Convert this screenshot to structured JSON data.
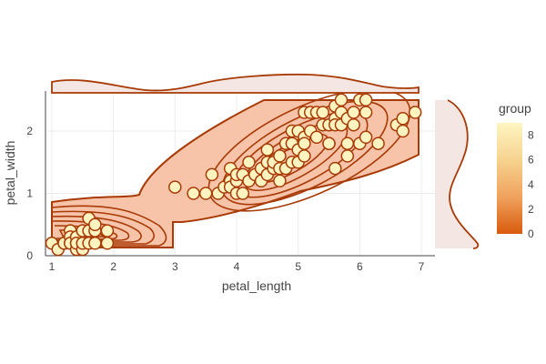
{
  "chart_data": {
    "type": "scatter",
    "subtype": "density-contour with marginal density",
    "title": "",
    "xlabel": "petal_length",
    "ylabel": "petal_width",
    "xlim": [
      0.8,
      7.2
    ],
    "ylim": [
      0,
      2.55
    ],
    "xticks": [
      1,
      2,
      3,
      4,
      5,
      6,
      7
    ],
    "yticks": [
      0,
      1,
      2
    ],
    "grid": true,
    "points": [
      [
        1.0,
        0.2
      ],
      [
        1.1,
        0.1
      ],
      [
        1.2,
        0.2
      ],
      [
        1.2,
        0.2
      ],
      [
        1.3,
        0.2
      ],
      [
        1.3,
        0.4
      ],
      [
        1.3,
        0.3
      ],
      [
        1.3,
        0.2
      ],
      [
        1.4,
        0.2
      ],
      [
        1.4,
        0.1
      ],
      [
        1.4,
        0.3
      ],
      [
        1.4,
        0.2
      ],
      [
        1.5,
        0.2
      ],
      [
        1.5,
        0.4
      ],
      [
        1.5,
        0.1
      ],
      [
        1.5,
        0.2
      ],
      [
        1.6,
        0.2
      ],
      [
        1.6,
        0.6
      ],
      [
        1.6,
        0.4
      ],
      [
        1.7,
        0.4
      ],
      [
        1.7,
        0.5
      ],
      [
        1.7,
        0.2
      ],
      [
        1.9,
        0.2
      ],
      [
        1.9,
        0.4
      ],
      [
        3.0,
        1.1
      ],
      [
        3.3,
        1.0
      ],
      [
        3.5,
        1.0
      ],
      [
        3.6,
        1.3
      ],
      [
        3.7,
        1.0
      ],
      [
        3.8,
        1.1
      ],
      [
        3.9,
        1.4
      ],
      [
        3.9,
        1.2
      ],
      [
        3.9,
        1.1
      ],
      [
        4.0,
        1.0
      ],
      [
        4.0,
        1.2
      ],
      [
        4.0,
        1.3
      ],
      [
        4.1,
        1.0
      ],
      [
        4.1,
        1.3
      ],
      [
        4.2,
        1.2
      ],
      [
        4.2,
        1.5
      ],
      [
        4.3,
        1.3
      ],
      [
        4.4,
        1.4
      ],
      [
        4.4,
        1.2
      ],
      [
        4.5,
        1.5
      ],
      [
        4.5,
        1.3
      ],
      [
        4.5,
        1.7
      ],
      [
        4.6,
        1.4
      ],
      [
        4.6,
        1.5
      ],
      [
        4.7,
        1.4
      ],
      [
        4.7,
        1.6
      ],
      [
        4.7,
        1.2
      ],
      [
        4.8,
        1.8
      ],
      [
        4.8,
        1.4
      ],
      [
        4.9,
        1.5
      ],
      [
        4.9,
        1.8
      ],
      [
        4.9,
        2.0
      ],
      [
        5.0,
        1.7
      ],
      [
        5.0,
        1.5
      ],
      [
        5.0,
        2.0
      ],
      [
        5.1,
        1.6
      ],
      [
        5.1,
        1.9
      ],
      [
        5.1,
        2.3
      ],
      [
        5.1,
        1.8
      ],
      [
        5.2,
        2.3
      ],
      [
        5.2,
        2.0
      ],
      [
        5.3,
        1.9
      ],
      [
        5.3,
        2.3
      ],
      [
        5.4,
        2.1
      ],
      [
        5.4,
        2.3
      ],
      [
        5.5,
        1.8
      ],
      [
        5.5,
        2.1
      ],
      [
        5.5,
        1.8
      ],
      [
        5.6,
        2.4
      ],
      [
        5.6,
        2.2
      ],
      [
        5.6,
        1.4
      ],
      [
        5.6,
        2.1
      ],
      [
        5.7,
        2.3
      ],
      [
        5.7,
        2.5
      ],
      [
        5.7,
        2.1
      ],
      [
        5.8,
        1.8
      ],
      [
        5.8,
        2.2
      ],
      [
        5.8,
        1.6
      ],
      [
        5.9,
        2.3
      ],
      [
        5.9,
        2.1
      ],
      [
        6.0,
        1.8
      ],
      [
        6.0,
        2.5
      ],
      [
        6.1,
        2.5
      ],
      [
        6.1,
        1.9
      ],
      [
        6.1,
        2.3
      ],
      [
        6.3,
        1.8
      ],
      [
        6.6,
        2.1
      ],
      [
        6.7,
        2.2
      ],
      [
        6.7,
        2.0
      ],
      [
        6.9,
        2.3
      ]
    ],
    "colorbar": {
      "title": "group",
      "ticks": [
        0,
        2,
        4,
        6,
        8
      ],
      "range": [
        0,
        9
      ],
      "colors": [
        "#d85a0d",
        "#f0a25e",
        "#f6d28e",
        "#fff5c2"
      ]
    },
    "colors": {
      "contour_fill": "#f7c4aa",
      "contour_line": "#a83a06",
      "marker_fill": "#fff4c0",
      "marker_line": "#a83a06",
      "marginal_fill": "#f4e6e2",
      "grid": "#ececec"
    }
  }
}
